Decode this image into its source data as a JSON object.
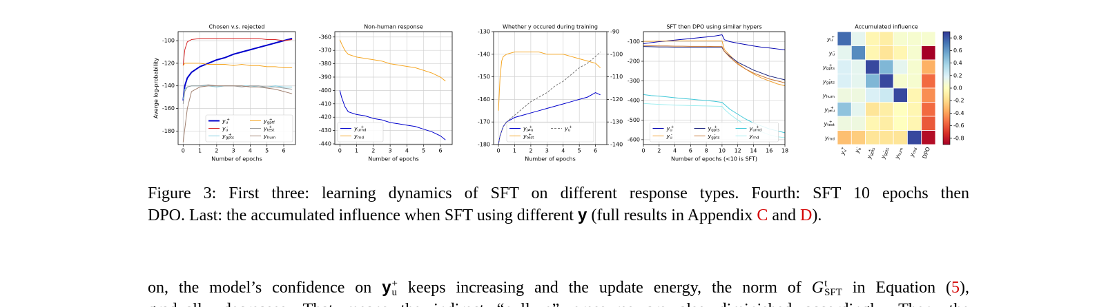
{
  "chart_data": [
    {
      "type": "line",
      "title": "Chosen v.s. rejected",
      "xlabel": "Number of epochs",
      "ylabel": "Averge log-probability",
      "x": [
        0,
        0.1,
        0.25,
        0.5,
        1,
        1.5,
        2,
        2.5,
        3,
        3.5,
        4,
        4.5,
        5,
        5.5,
        6,
        6.5
      ],
      "xlim": [
        -0.3,
        6.7
      ],
      "xticks": [
        0,
        1,
        2,
        3,
        4,
        5,
        6
      ],
      "ylim": [
        -192,
        -92
      ],
      "yticks": [
        -100,
        -120,
        -140,
        -160,
        -180
      ],
      "grid": true,
      "legend": "lower right",
      "legend_columns": 2,
      "series": [
        {
          "name": "y_u^+",
          "color": "#0000cc",
          "linewidth": 2,
          "values": [
            -153,
            -140,
            -133,
            -128,
            -123,
            -120,
            -117,
            -115,
            -112,
            -110,
            -108,
            -106,
            -104,
            -102,
            -100,
            -98
          ]
        },
        {
          "name": "y_u^-",
          "color": "#d62728",
          "values": [
            -122,
            -108,
            -101,
            -99,
            -98,
            -98,
            -98,
            -98,
            -98,
            -98,
            -98,
            -98,
            -99,
            -99,
            -100,
            -99
          ]
        },
        {
          "name": "y_gpts^+",
          "color": "#7fcde0",
          "values": [
            -152,
            -143,
            -141,
            -140,
            -140,
            -140,
            -141,
            -140,
            -140,
            -140,
            -140,
            -141,
            -141,
            -140,
            -141,
            -141
          ]
        },
        {
          "name": "y_gptf^+",
          "color": "#f5a623",
          "values": [
            -122,
            -120,
            -120,
            -120,
            -120,
            -121,
            -121,
            -121,
            -122,
            -121,
            -122,
            -122,
            -123,
            -123,
            -124,
            -124
          ]
        },
        {
          "name": "y_test^+",
          "color": "#9a9a9a",
          "values": [
            -156,
            -145,
            -141,
            -140,
            -140,
            -139,
            -140,
            -140,
            -140,
            -141,
            -140,
            -140,
            -141,
            -141,
            -142,
            -143
          ]
        },
        {
          "name": "y_hum",
          "color": "#a08070",
          "values": [
            -190,
            -178,
            -160,
            -145,
            -141,
            -140,
            -140,
            -140,
            -140,
            -140,
            -141,
            -141,
            -142,
            -143,
            -145,
            -147
          ]
        }
      ]
    },
    {
      "type": "line",
      "title": "Non-human response",
      "xlabel": "Number of epochs",
      "x": [
        0,
        0.1,
        0.3,
        0.5,
        1,
        1.5,
        2,
        2.5,
        3,
        3.5,
        4,
        4.5,
        5,
        5.5,
        6,
        6.3
      ],
      "xlim": [
        -0.3,
        6.7
      ],
      "xticks": [
        0,
        1,
        2,
        3,
        4,
        5,
        6
      ],
      "ylim": [
        -440.5,
        -356
      ],
      "yticks": [
        -360,
        -370,
        -380,
        -390,
        -400,
        -410,
        -420,
        -430,
        -440
      ],
      "grid": true,
      "legend": "lower left",
      "legend_columns": 1,
      "series": [
        {
          "name": "y_urnd^+",
          "color": "#0000cc",
          "values": [
            -400,
            -405,
            -412,
            -416,
            -418,
            -419,
            -421,
            -422,
            -424,
            -425,
            -426,
            -427,
            -429,
            -431,
            -434,
            -437
          ]
        },
        {
          "name": "y_rnd",
          "color": "#f5a623",
          "values": [
            -362,
            -365,
            -370,
            -373,
            -375,
            -376,
            -377,
            -378,
            -380,
            -381,
            -382,
            -383,
            -385,
            -387,
            -390,
            -393
          ]
        }
      ]
    },
    {
      "type": "line",
      "title": "Whether y occured during training",
      "xlabel": "Number of epochs",
      "x": [
        0,
        0.1,
        0.2,
        0.3,
        0.5,
        1,
        1.5,
        2,
        2.5,
        3,
        3.5,
        4,
        4.5,
        5,
        5.5,
        6,
        6.3
      ],
      "xlim": [
        -0.3,
        6.7
      ],
      "xticks": [
        0,
        1,
        2,
        3,
        4,
        5,
        6
      ],
      "ylim": [
        -180,
        -130
      ],
      "yticks": [
        -130,
        -140,
        -150,
        -160,
        -170,
        -180
      ],
      "y2lim": [
        -140,
        -90
      ],
      "y2ticks": [
        -90,
        -100,
        -110,
        -120,
        -130,
        -140
      ],
      "grid": true,
      "legend": "lower center",
      "legend_columns": 2,
      "series": [
        {
          "name": "y_j≠u^+",
          "color": "#0000cc",
          "values": [
            -180,
            -176,
            -174,
            -172,
            -170,
            -168,
            -167,
            -166,
            -165,
            -164,
            -163,
            -162,
            -161,
            -160,
            -159,
            -157,
            -158
          ]
        },
        {
          "name": "y_test^+",
          "color": "#f5a623",
          "values": [
            -165,
            -150,
            -143,
            -141,
            -140,
            -139,
            -139,
            -139,
            -139,
            -140,
            -140,
            -140,
            -141,
            -142,
            -143,
            -144,
            -146
          ]
        },
        {
          "name": "y_u^+",
          "color": "#777777",
          "linestyle": "dashed",
          "axis": "y2",
          "values": [
            -140,
            -136,
            -134,
            -132,
            -130,
            -127,
            -124,
            -121,
            -119,
            -117,
            -114,
            -112,
            -109,
            -106,
            -104,
            -101,
            -99
          ]
        }
      ]
    },
    {
      "type": "line",
      "title": "SFT then DPO using similar hypers",
      "xlabel": "Number of epochs (<10 is SFT)",
      "x": [
        0,
        1,
        2,
        3,
        4,
        5,
        6,
        7,
        8,
        9,
        10,
        10.3,
        11,
        12,
        13,
        14,
        15,
        16,
        17,
        18
      ],
      "xlim": [
        0,
        18
      ],
      "xticks": [
        0,
        2,
        4,
        6,
        8,
        10,
        12,
        14,
        16,
        18
      ],
      "ylim": [
        -625,
        -49
      ],
      "yticks": [
        -100,
        -200,
        -300,
        -400,
        -500,
        -600
      ],
      "grid": true,
      "legend": "lower center",
      "legend_columns": 3,
      "series": [
        {
          "name": "y_u^+",
          "color": "#0000b0",
          "values": [
            -110,
            -105,
            -100,
            -96,
            -92,
            -88,
            -84,
            -80,
            -76,
            -72,
            -65,
            -90,
            -100,
            -108,
            -115,
            -122,
            -128,
            -132,
            -137,
            -142
          ]
        },
        {
          "name": "y_u^-",
          "color": "#f0a030",
          "values": [
            -98,
            -98,
            -97,
            -97,
            -96,
            -96,
            -96,
            -96,
            -96,
            -96,
            -96,
            -140,
            -170,
            -210,
            -240,
            -265,
            -285,
            -300,
            -315,
            -325
          ]
        },
        {
          "name": "y_gpts^+",
          "color": "#1a237e",
          "values": [
            -125,
            -126,
            -127,
            -127,
            -128,
            -128,
            -128,
            -129,
            -129,
            -129,
            -130,
            -150,
            -175,
            -205,
            -225,
            -245,
            -260,
            -275,
            -285,
            -295
          ]
        },
        {
          "name": "y_gpts^-",
          "color": "#c87533",
          "values": [
            -120,
            -121,
            -122,
            -122,
            -123,
            -123,
            -124,
            -124,
            -124,
            -125,
            -125,
            -150,
            -180,
            -215,
            -240,
            -260,
            -275,
            -290,
            -300,
            -310
          ]
        },
        {
          "name": "y_urnd^+",
          "color": "#40c8d8",
          "values": [
            -370,
            -375,
            -378,
            -382,
            -386,
            -390,
            -393,
            -397,
            -400,
            -404,
            -410,
            -420,
            -445,
            -470,
            -495,
            -515,
            -530,
            -545,
            -555,
            -565
          ]
        },
        {
          "name": "y_rnd",
          "color": "#a0eef0",
          "values": [
            -415,
            -418,
            -420,
            -422,
            -424,
            -425,
            -426,
            -427,
            -428,
            -429,
            -430,
            -445,
            -470,
            -500,
            -525,
            -545,
            -560,
            -575,
            -585,
            -590
          ]
        }
      ]
    },
    {
      "type": "heatmap",
      "title": "Accumulated influence",
      "colormap": "RdYlBu",
      "columns": [
        "y_u^+",
        "y_u^-",
        "y_gpts^+",
        "y_gpts^-",
        "y_hum",
        "y_rnd",
        "DPO"
      ],
      "rows": [
        "y_u^+",
        "y_u^-",
        "y_gpts^+",
        "y_gpts^-",
        "y_hum",
        "y_j≠u^+",
        "y_test^+",
        "y_rnd"
      ],
      "values": [
        [
          0.75,
          0.15,
          -0.05,
          -0.1,
          0.05,
          0.05,
          0.05
        ],
        [
          0.15,
          0.65,
          -0.05,
          -0.15,
          -0.05,
          0.05,
          -0.9
        ],
        [
          0.2,
          0.15,
          0.85,
          0.5,
          0.15,
          0.05,
          -0.35
        ],
        [
          0.2,
          0.15,
          0.5,
          0.85,
          0.05,
          0.05,
          -0.55
        ],
        [
          0.1,
          0.1,
          0.2,
          0.25,
          0.85,
          -0.05,
          -0.45
        ],
        [
          0.45,
          0.15,
          -0.15,
          -0.1,
          0,
          -0.05,
          -0.55
        ],
        [
          0.1,
          0.1,
          -0.05,
          -0.1,
          0,
          -0.05,
          -0.6
        ],
        [
          -0.3,
          -0.25,
          -0.15,
          -0.15,
          -0.15,
          0.85,
          -0.85
        ]
      ],
      "vlim": [
        -0.9,
        0.9
      ],
      "colorbar_ticks": [
        0.8,
        0.6,
        0.4,
        0.2,
        {
          "value": 0,
          "label": "0.0"
        },
        -0.2,
        -0.4,
        -0.6,
        -0.8
      ]
    }
  ],
  "caption": {
    "line_1": "Figure 3: First three: learning dynamics of SFT on different response types. Fourth: SFT 10 epochs then",
    "line_2": [
      "DPO. Last: the accumulated influence when SFT using different ",
      "y",
      " (full results in Appendix ",
      "C",
      " and ",
      "D",
      ")."
    ]
  },
  "body": {
    "line_1": [
      "on, the model’s confidence on ",
      "y_u^+",
      " keeps increasing and the update energy, the norm of ",
      "G_SFT^t",
      " in Equation (",
      "5",
      "),"
    ],
    "line_2": "gradually decreases. That means the indirect “pull-up” pressures are also diminished accordingly. Then, the"
  }
}
